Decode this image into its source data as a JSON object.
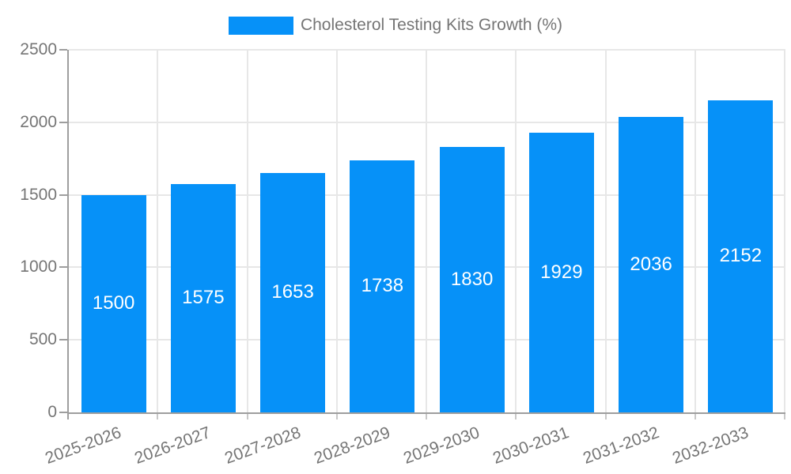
{
  "chart_data": {
    "type": "bar",
    "title": "",
    "legend": {
      "label": "Cholesterol Testing Kits Growth (%)",
      "position": "top"
    },
    "categories": [
      "2025-2026",
      "2026-2027",
      "2027-2028",
      "2028-2029",
      "2029-2030",
      "2030-2031",
      "2031-2032",
      "2032-2033"
    ],
    "values": [
      1500,
      1575,
      1653,
      1738,
      1830,
      1929,
      2036,
      2152
    ],
    "value_labels_shown": true,
    "xlabel": "",
    "ylabel": "",
    "ylim": [
      0,
      2500
    ],
    "yticks": [
      0,
      500,
      1000,
      1500,
      2000,
      2500
    ],
    "grid": "both"
  },
  "colors": {
    "bar": "#0691f8",
    "value_label": "#ffffff",
    "grid": "#e7e7e7",
    "axis": "#9e9e9e",
    "tick_stub": "#c9c9c9",
    "tick_text": "#757575",
    "legend_text": "#757575",
    "background": "#ffffff"
  }
}
